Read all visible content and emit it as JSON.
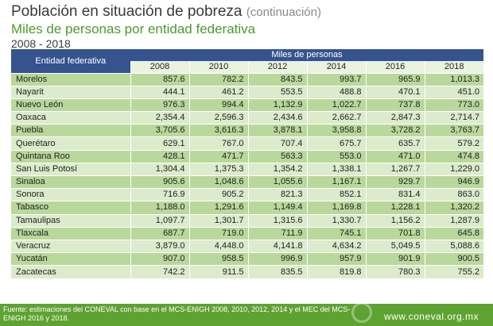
{
  "header": {
    "title": "Población en situación de pobreza",
    "title_suffix": "(continuación)",
    "subtitle": "Miles de personas por entidad federativa",
    "period": "2008 - 2018"
  },
  "table": {
    "entity_header": "Entidad federativa",
    "group_header": "Miles de personas",
    "years": [
      "2008",
      "2010",
      "2012",
      "2014",
      "2016",
      "2018"
    ],
    "rows": [
      {
        "entity": "Morelos",
        "values": [
          "857.6",
          "782.2",
          "843.5",
          "993.7",
          "965.9",
          "1,013.3"
        ]
      },
      {
        "entity": "Nayarit",
        "values": [
          "444.1",
          "461.2",
          "553.5",
          "488.8",
          "470.1",
          "451.0"
        ]
      },
      {
        "entity": "Nuevo León",
        "values": [
          "976.3",
          "994.4",
          "1,132.9",
          "1,022.7",
          "737.8",
          "773.0"
        ]
      },
      {
        "entity": "Oaxaca",
        "values": [
          "2,354.4",
          "2,596.3",
          "2,434.6",
          "2,662.7",
          "2,847.3",
          "2,714.7"
        ]
      },
      {
        "entity": "Puebla",
        "values": [
          "3,705.6",
          "3,616.3",
          "3,878.1",
          "3,958.8",
          "3,728.2",
          "3,763.7"
        ]
      },
      {
        "entity": "Querétaro",
        "values": [
          "629.1",
          "767.0",
          "707.4",
          "675.7",
          "635.7",
          "579.2"
        ]
      },
      {
        "entity": "Quintana Roo",
        "values": [
          "428.1",
          "471.7",
          "563.3",
          "553.0",
          "471.0",
          "474.8"
        ]
      },
      {
        "entity": "San Luis Potosí",
        "values": [
          "1,304.4",
          "1,375.3",
          "1,354.2",
          "1,338.1",
          "1,267.7",
          "1,229.0"
        ]
      },
      {
        "entity": "Sinaloa",
        "values": [
          "905.6",
          "1,048.6",
          "1,055.6",
          "1,167.1",
          "929.7",
          "946.9"
        ]
      },
      {
        "entity": "Sonora",
        "values": [
          "716.9",
          "905.2",
          "821.3",
          "852.1",
          "831.4",
          "863.0"
        ]
      },
      {
        "entity": "Tabasco",
        "values": [
          "1,188.0",
          "1,291.6",
          "1,149.4",
          "1,169.8",
          "1,228.1",
          "1,320.2"
        ]
      },
      {
        "entity": "Tamaulipas",
        "values": [
          "1,097.7",
          "1,301.7",
          "1,315.6",
          "1,330.7",
          "1,156.2",
          "1,287.9"
        ]
      },
      {
        "entity": "Tlaxcala",
        "values": [
          "687.7",
          "719.0",
          "711.9",
          "745.1",
          "701.8",
          "645.8"
        ]
      },
      {
        "entity": "Veracruz",
        "values": [
          "3,879.0",
          "4,448.0",
          "4,141.8",
          "4,634.2",
          "5,049.5",
          "5,088.6"
        ]
      },
      {
        "entity": "Yucatán",
        "values": [
          "907.0",
          "958.5",
          "996.9",
          "957.9",
          "901.9",
          "900.5"
        ]
      },
      {
        "entity": "Zacatecas",
        "values": [
          "742.2",
          "911.5",
          "835.5",
          "819.8",
          "780.3",
          "755.2"
        ]
      }
    ]
  },
  "footer": {
    "source": "Fuente: estimaciones del CONEVAL con base en el MCS-ENIGH 2008, 2010, 2012, 2014 y el MEC del MCS-ENIGH 2016 y 2018.",
    "website": "www.coneval.org.mx"
  },
  "colors": {
    "header_blue": "#34538f",
    "subtitle_green": "#4e9a2e",
    "row_dark": "#b9d89b",
    "row_light": "#dcebcb",
    "footer_green": "#5ea232"
  }
}
